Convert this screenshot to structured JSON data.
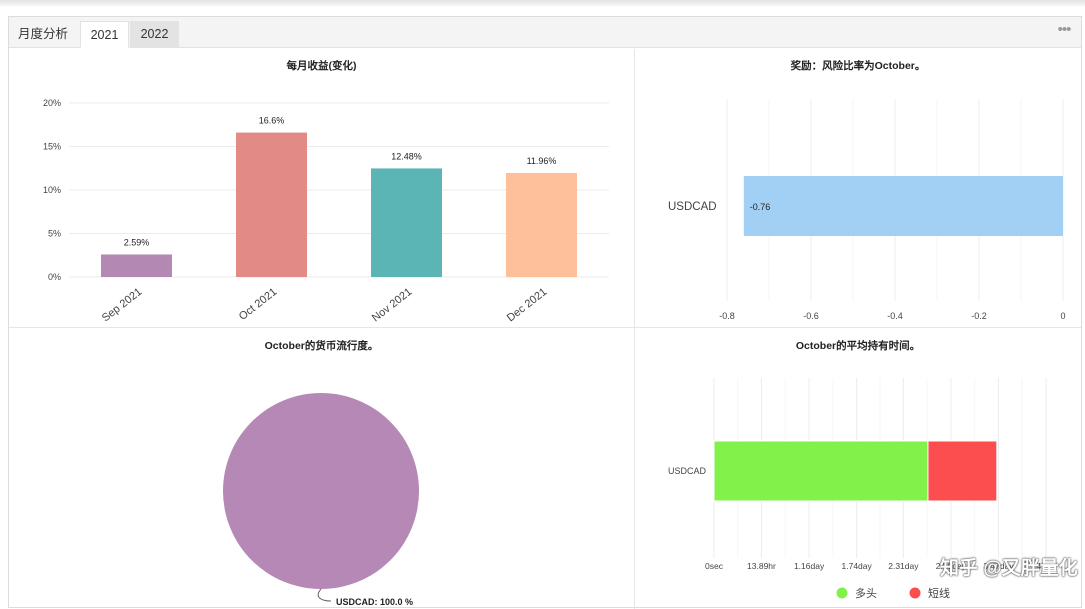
{
  "tabs": {
    "label": "月度分析",
    "active": "2021",
    "inactive": "2022"
  },
  "colors": {
    "bar_purple": "#b388b3",
    "bar_red": "#e28a86",
    "bar_teal": "#5bb5b5",
    "bar_orange": "#fdc09a",
    "hbar_blue": "#a2d0f5",
    "long_green": "#82f24a",
    "short_red": "#fc4e4e",
    "pie_purple": "#b588b5"
  },
  "chart_data": [
    {
      "type": "bar",
      "title": "每月收益(变化)",
      "categories": [
        "Sep 2021",
        "Oct 2021",
        "Nov 2021",
        "Dec 2021"
      ],
      "values": [
        2.59,
        16.6,
        12.48,
        11.96
      ],
      "data_labels": [
        "2.59%",
        "16.6%",
        "12.48%",
        "11.96%"
      ],
      "y_ticks": [
        "0%",
        "5%",
        "10%",
        "15%",
        "20%"
      ],
      "ylim": [
        0,
        20
      ],
      "grid": true
    },
    {
      "type": "bar",
      "orientation": "horizontal",
      "title": "奖励：风险比率为October。",
      "categories": [
        "USDCAD"
      ],
      "values": [
        -0.76
      ],
      "data_labels": [
        "-0.76"
      ],
      "x_ticks": [
        "-0.8",
        "-0.6",
        "-0.4",
        "-0.2",
        "0"
      ],
      "xlim": [
        -0.8,
        0
      ],
      "grid": true
    },
    {
      "type": "pie",
      "title": "October的货币流行度。",
      "categories": [
        "USDCAD"
      ],
      "values": [
        100.0
      ],
      "data_labels": [
        "USDCAD: 100.0 %"
      ]
    },
    {
      "type": "bar",
      "orientation": "horizontal",
      "stacked": true,
      "title": "October的平均持有时间。",
      "categories": [
        "USDCAD"
      ],
      "series": [
        {
          "name": "多头",
          "values": [
            2.61
          ]
        },
        {
          "name": "短线",
          "values": [
            0.84
          ]
        }
      ],
      "x_ticks": [
        "0sec",
        "13.89hr",
        "1.16day",
        "1.74day",
        "2.31day",
        "2.89day",
        "3.47day",
        "4.0..."
      ],
      "x_tick_values": [
        0,
        0.579,
        1.16,
        1.74,
        2.31,
        2.89,
        3.47,
        4.05
      ],
      "x_unit": "day",
      "legend_position": "bottom-right",
      "grid": true
    }
  ],
  "watermark": "知乎 @又胖量化"
}
